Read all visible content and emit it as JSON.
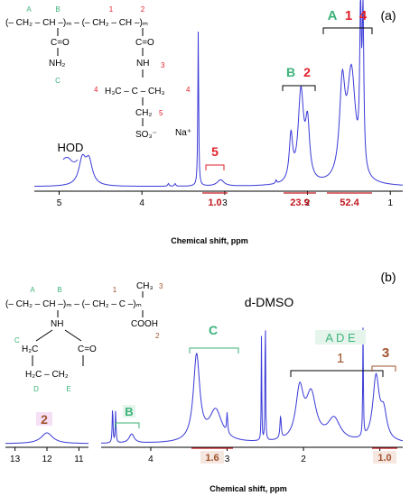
{
  "chart_data": [
    {
      "type": "line",
      "panel_label": "(a)",
      "xlabel": "Chemical shift, ppm",
      "x_ticks": [
        "5",
        "4",
        "3",
        "2",
        "1"
      ],
      "xlim": [
        5.3,
        0.85
      ],
      "peak_labels": [
        {
          "text": "HOD",
          "x": 4.7
        },
        {
          "text": "5",
          "x": 3.05
        },
        {
          "text": "B",
          "x": 2.15
        },
        {
          "text": "2",
          "x": 2.08
        },
        {
          "text": "A",
          "x": 1.62
        },
        {
          "text": "1",
          "x": 1.47
        },
        {
          "text": "4",
          "x": 1.34
        }
      ],
      "integrals": [
        {
          "value": "1.0",
          "x_start": 3.15,
          "x_end": 2.9
        },
        {
          "value": "23.9",
          "x_start": 2.35,
          "x_end": 1.92
        },
        {
          "value": "52.4",
          "x_start": 1.78,
          "x_end": 1.22
        }
      ],
      "structure": {
        "backbone": "(– CH₂ – CH –)ₘ – (– CH₂ – CH –)ₘ",
        "amide_1": "C=O",
        "amide_nh2": "NH₂",
        "amide_2": "C=O",
        "nh": "NH",
        "quaternary": "H₃C – C – CH₃",
        "ch2": "CH₂",
        "sulfonate": "SO₃⁻",
        "counterion": "Na⁺",
        "labels": {
          "A": "A",
          "B": "B",
          "C": "C",
          "n1": "1",
          "n2": "2",
          "n3": "3",
          "n4a": "4",
          "n4b": "4",
          "n5": "5"
        }
      }
    },
    {
      "type": "line",
      "panel_label": "(b)",
      "xlabel": "Chemical shift, ppm",
      "x_ticks": [
        "4",
        "3",
        "2",
        "1"
      ],
      "xlim": [
        4.65,
        0.7
      ],
      "inset": {
        "x_ticks": [
          "13",
          "12",
          "11"
        ],
        "xlim": [
          13.3,
          10.7
        ],
        "peak_label": "2"
      },
      "solvent_label": "d-DMSO",
      "peak_labels": [
        {
          "text": "B",
          "x": 4.25
        },
        {
          "text": "C",
          "x": 3.3
        },
        {
          "text": "A D E",
          "x": 1.95
        },
        {
          "text": "1",
          "x": 1.95
        },
        {
          "text": "3",
          "x": 1.05
        }
      ],
      "integrals": [
        {
          "value": "1.6",
          "x_start": 3.55,
          "x_end": 3.0
        },
        {
          "value": "1.0",
          "x_start": 1.25,
          "x_end": 0.85
        }
      ],
      "structure": {
        "backbone": "(– CH₂ – CH –)ₘ – (– CH₂ – C –)ₘ",
        "methyl": "CH₃",
        "acid": "COOH",
        "nh": "NH",
        "ring_left": "H₂C",
        "ring_co": "C=O",
        "ring_bottom": "H₂C – CH₂",
        "labels": {
          "A": "A",
          "B": "B",
          "C": "C",
          "D": "D",
          "E": "E",
          "n1": "1",
          "n2": "2",
          "n3": "3"
        }
      }
    }
  ],
  "colors": {
    "spectrum": "#3a3ad8",
    "green": "#3cb37a",
    "red": "#e0202a",
    "brown": "#a0522d",
    "integral_red": "#c0181e",
    "highlight": "#f5e0f5"
  }
}
